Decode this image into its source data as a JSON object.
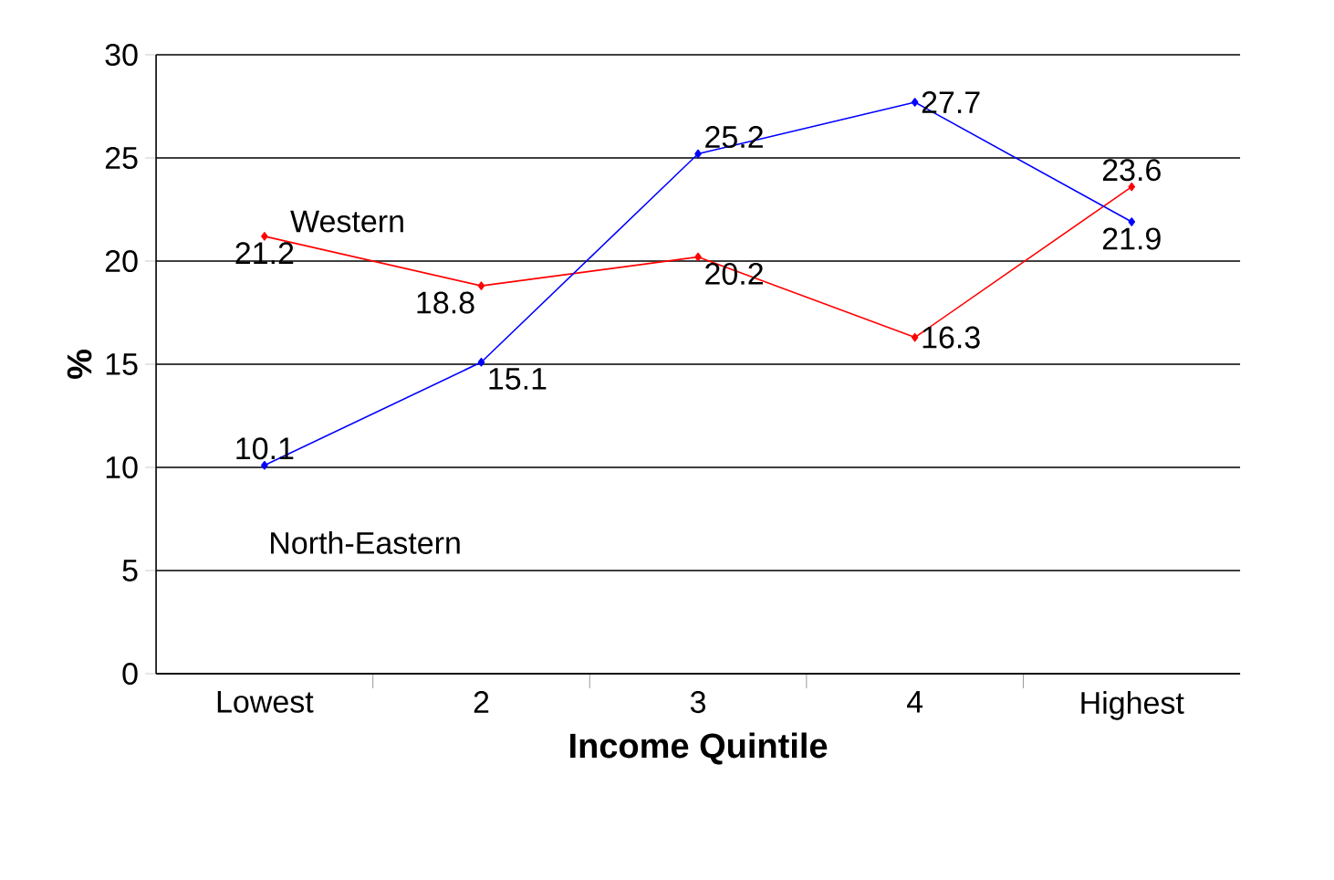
{
  "chart_data": {
    "type": "line",
    "xlabel": "Income Quintile",
    "ylabel": "%",
    "categories": [
      "Lowest",
      "2",
      "3",
      "4",
      "Highest"
    ],
    "series": [
      {
        "name": "Western",
        "color": "#ff0000",
        "values": [
          21.2,
          18.8,
          20.2,
          16.3,
          23.6
        ]
      },
      {
        "name": "North-Eastern",
        "color": "#0000ff",
        "values": [
          10.1,
          15.1,
          25.2,
          27.7,
          21.9
        ]
      }
    ],
    "ylim": [
      0,
      30
    ],
    "yticks": [
      0,
      5,
      10,
      15,
      20,
      25,
      30
    ],
    "grid": "y",
    "marker": "diamond",
    "line_style": "solid",
    "data_labels": true
  }
}
